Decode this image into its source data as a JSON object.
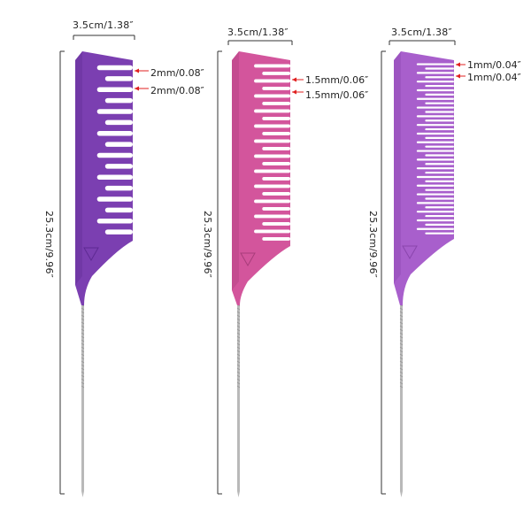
{
  "combs": [
    {
      "width_label": "3.5cm/1.38″",
      "length_label": "25.3cm/9.96″",
      "tooth_gap_labels": [
        "2mm/0.08″",
        "2mm/0.08″"
      ],
      "color": "#7b3fb1",
      "color_dark": "#5e2a93"
    },
    {
      "width_label": "3.5cm/1.38″",
      "length_label": "25.3cm/9.96″",
      "tooth_gap_labels": [
        "1.5mm/0.06″",
        "1.5mm/0.06″"
      ],
      "color": "#d3559c",
      "color_dark": "#a83d7b"
    },
    {
      "width_label": "3.5cm/1.38″",
      "length_label": "25.3cm/9.96″",
      "tooth_gap_labels": [
        "1mm/0.04″",
        "1mm/0.04″"
      ],
      "color": "#a85fcc",
      "color_dark": "#8a45ad"
    }
  ],
  "colors": {
    "dimension_line": "#333333",
    "marker_red": "#e02020",
    "metal_tail": "#b9b9b9"
  }
}
